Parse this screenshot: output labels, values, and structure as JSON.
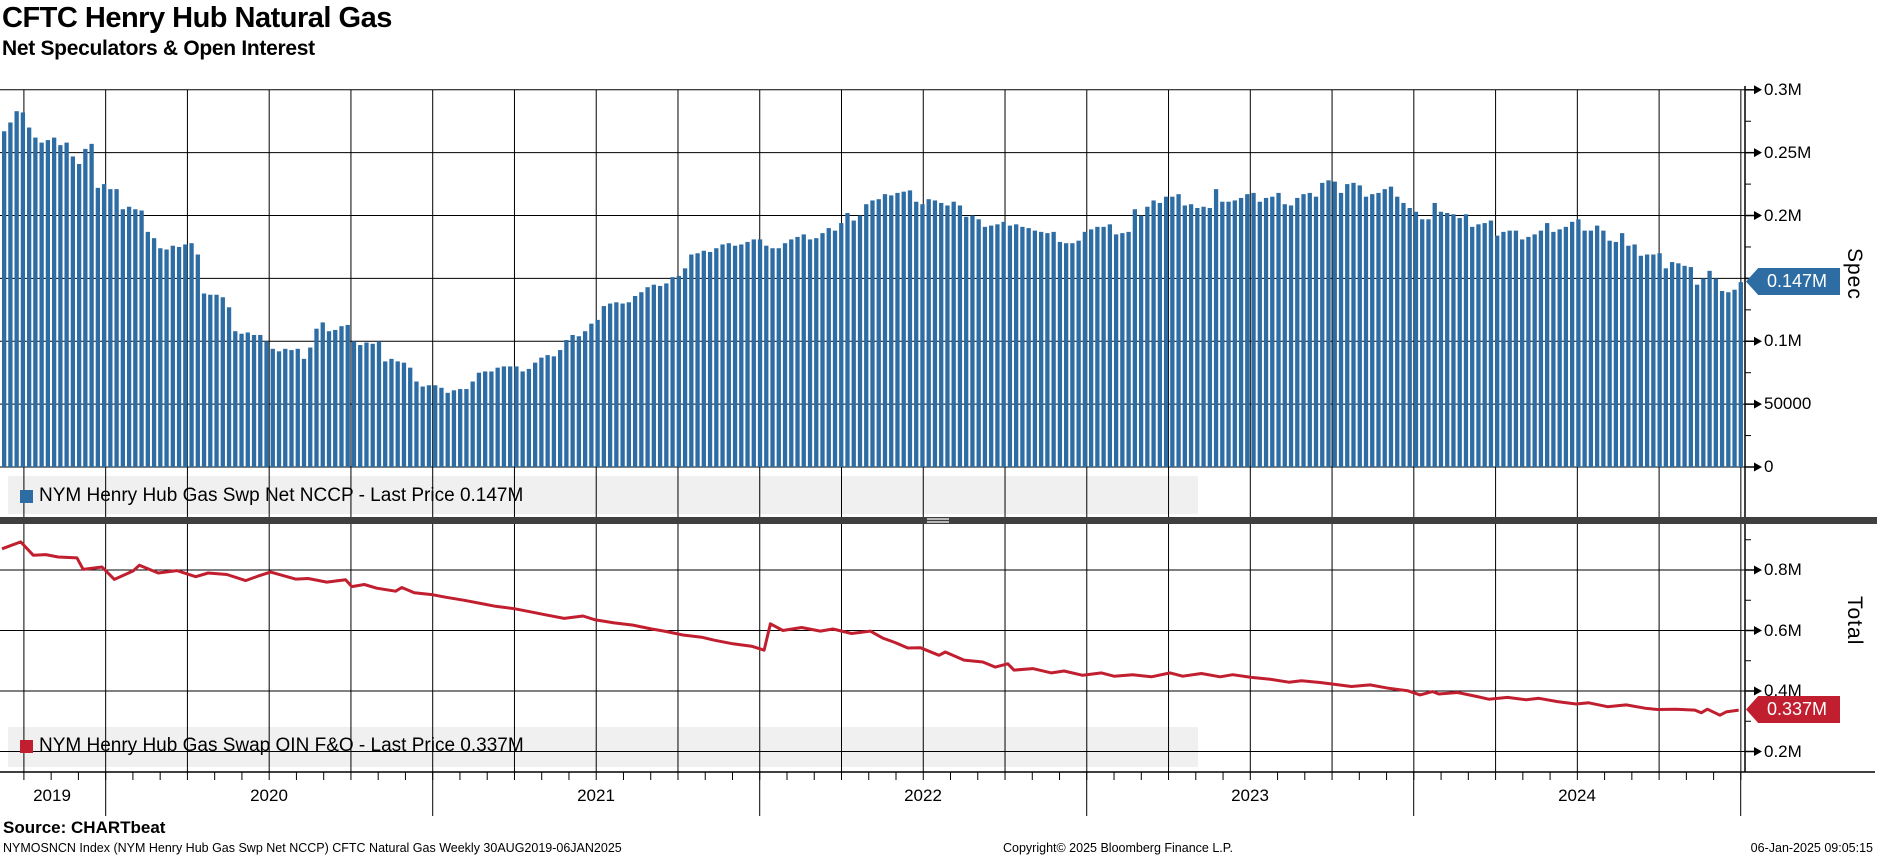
{
  "header": {
    "title": "CFTC Henry Hub Natural Gas",
    "subtitle": "Net Speculators & Open Interest"
  },
  "colors": {
    "bar": "#2d6da4",
    "line": "#c11f2f",
    "legend_bg": "#f0f0f0",
    "separator": "#3f3f3f",
    "grid": "#000000",
    "tag_blue": "#2d6da4",
    "tag_red": "#c11f2f"
  },
  "top_panel": {
    "legend": "NYM Henry Hub Gas Swp Net NCCP - Last Price 0.147M",
    "axis_label": "Spec",
    "tag": "0.147M",
    "yticks": [
      {
        "v": 0,
        "label": "0"
      },
      {
        "v": 50,
        "label": "50000"
      },
      {
        "v": 100,
        "label": "0.1M"
      },
      {
        "v": 150,
        "label": ""
      },
      {
        "v": 200,
        "label": "0.2M"
      },
      {
        "v": 250,
        "label": "0.25M"
      },
      {
        "v": 300,
        "label": "0.3M"
      }
    ]
  },
  "bottom_panel": {
    "legend": "NYM Henry Hub Gas Swap OIN F&O - Last Price 0.337M",
    "axis_label": "Total",
    "tag": "0.337M",
    "yticks": [
      {
        "v": 200,
        "label": "0.2M"
      },
      {
        "v": 400,
        "label": "0.4M"
      },
      {
        "v": 600,
        "label": "0.6M"
      },
      {
        "v": 800,
        "label": "0.8M"
      }
    ]
  },
  "x_axis": {
    "years": [
      "2019",
      "2020",
      "2021",
      "2022",
      "2023",
      "2024"
    ],
    "range": "30AUG2019-06JAN2025",
    "frequency": "Weekly"
  },
  "footer": {
    "source": "Source: CHARTbeat",
    "description": "NYMOSNCN Index (NYM Henry Hub Gas Swp Net NCCP) CFTC Natural Gas  Weekly 30AUG2019-06JAN2025",
    "copyright": "Copyright© 2025 Bloomberg Finance L.P.",
    "datetime": "06-Jan-2025 09:05:15"
  },
  "chart_data": [
    {
      "type": "bar",
      "name": "NYM Henry Hub Gas Swp Net NCCP",
      "title": "Net Speculators (Spec)",
      "frequency": "weekly",
      "x_start": "30AUG2019",
      "x_end": "06JAN2025",
      "ylim_thousands": [
        0,
        300
      ],
      "ytick_labels": [
        "0",
        "50000",
        "0.1M",
        "0.15M",
        "0.2M",
        "0.25M",
        "0.3M"
      ],
      "last_price": "0.147M",
      "legend_position": "bottom-left",
      "grid": true,
      "values_thousands": [
        267,
        274,
        283,
        282,
        270,
        262,
        258,
        260,
        262,
        256,
        258,
        247,
        241,
        253,
        257,
        222,
        225,
        221,
        221,
        205,
        207,
        205,
        204,
        187,
        182,
        174,
        173,
        176,
        175,
        177,
        178,
        169,
        138,
        137,
        137,
        135,
        127,
        108,
        106,
        107,
        105,
        105,
        100,
        94,
        92,
        94,
        93,
        94,
        86,
        95,
        110,
        115,
        108,
        109,
        112,
        113,
        100,
        97,
        99,
        98,
        100,
        84,
        86,
        84,
        83,
        79,
        68,
        64,
        65,
        65,
        63,
        59,
        61,
        62,
        62,
        68,
        75,
        76,
        76,
        79,
        80,
        80,
        80,
        76,
        78,
        83,
        87,
        89,
        88,
        93,
        101,
        105,
        104,
        108,
        114,
        117,
        128,
        130,
        131,
        130,
        131,
        136,
        139,
        143,
        145,
        144,
        146,
        151,
        152,
        158,
        169,
        170,
        172,
        171,
        174,
        177,
        178,
        176,
        177,
        179,
        181,
        181,
        176,
        174,
        174,
        178,
        181,
        183,
        185,
        181,
        182,
        186,
        190,
        188,
        194,
        202,
        196,
        200,
        209,
        212,
        213,
        217,
        216,
        218,
        219,
        220,
        211,
        209,
        213,
        212,
        210,
        208,
        211,
        208,
        199,
        200,
        197,
        191,
        192,
        193,
        195,
        192,
        193,
        191,
        190,
        188,
        187,
        186,
        187,
        179,
        178,
        178,
        180,
        187,
        189,
        191,
        191,
        193,
        185,
        186,
        187,
        205,
        200,
        207,
        212,
        210,
        215,
        215,
        217,
        208,
        209,
        206,
        207,
        206,
        221,
        211,
        211,
        212,
        214,
        217,
        218,
        211,
        214,
        215,
        218,
        209,
        208,
        214,
        217,
        218,
        215,
        226,
        228,
        227,
        218,
        225,
        226,
        224,
        215,
        217,
        218,
        221,
        223,
        215,
        210,
        206,
        203,
        197,
        197,
        210,
        203,
        202,
        201,
        198,
        201,
        191,
        193,
        194,
        196,
        184,
        187,
        188,
        188,
        181,
        183,
        185,
        188,
        194,
        187,
        189,
        191,
        195,
        197,
        188,
        188,
        192,
        188,
        180,
        179,
        186,
        176,
        177,
        168,
        169,
        169,
        170,
        158,
        163,
        162,
        160,
        159,
        145,
        150,
        156,
        150,
        140,
        139,
        141,
        147
      ]
    },
    {
      "type": "line",
      "name": "NYM Henry Hub Gas Swap OIN F&O",
      "title": "Open Interest (Total)",
      "frequency": "weekly",
      "x_start": "30AUG2019",
      "x_end": "06JAN2025",
      "ylim_thousands": [
        190,
        950
      ],
      "ytick_labels": [
        "0.2M",
        "0.4M",
        "0.6M",
        "0.8M"
      ],
      "last_price": "0.337M",
      "legend_position": "bottom-left",
      "grid": true,
      "points_week_value_thousands": [
        [
          0,
          870
        ],
        [
          3,
          893
        ],
        [
          5,
          849
        ],
        [
          7,
          851
        ],
        [
          9,
          843
        ],
        [
          12,
          840
        ],
        [
          13,
          802
        ],
        [
          16,
          810
        ],
        [
          18,
          769
        ],
        [
          21,
          797
        ],
        [
          22,
          816
        ],
        [
          25,
          790
        ],
        [
          28,
          798
        ],
        [
          31,
          778
        ],
        [
          33,
          790
        ],
        [
          36,
          785
        ],
        [
          39,
          765
        ],
        [
          41,
          780
        ],
        [
          43,
          793
        ],
        [
          47,
          770
        ],
        [
          49,
          772
        ],
        [
          52,
          760
        ],
        [
          55,
          768
        ],
        [
          56,
          745
        ],
        [
          58,
          752
        ],
        [
          60,
          740
        ],
        [
          63,
          730
        ],
        [
          64,
          742
        ],
        [
          66,
          725
        ],
        [
          69,
          718
        ],
        [
          71,
          710
        ],
        [
          74,
          700
        ],
        [
          77,
          688
        ],
        [
          79,
          680
        ],
        [
          82,
          672
        ],
        [
          85,
          660
        ],
        [
          87,
          652
        ],
        [
          90,
          640
        ],
        [
          93,
          648
        ],
        [
          95,
          635
        ],
        [
          98,
          625
        ],
        [
          101,
          618
        ],
        [
          104,
          605
        ],
        [
          106,
          598
        ],
        [
          109,
          585
        ],
        [
          112,
          578
        ],
        [
          114,
          568
        ],
        [
          117,
          556
        ],
        [
          120,
          548
        ],
        [
          122,
          535
        ],
        [
          123,
          622
        ],
        [
          125,
          600
        ],
        [
          128,
          610
        ],
        [
          131,
          598
        ],
        [
          133,
          605
        ],
        [
          136,
          590
        ],
        [
          139,
          598
        ],
        [
          141,
          575
        ],
        [
          143,
          560
        ],
        [
          145,
          542
        ],
        [
          147,
          543
        ],
        [
          150,
          518
        ],
        [
          151,
          529
        ],
        [
          154,
          502
        ],
        [
          157,
          496
        ],
        [
          159,
          479
        ],
        [
          161,
          490
        ],
        [
          162,
          469
        ],
        [
          165,
          474
        ],
        [
          168,
          460
        ],
        [
          170,
          466
        ],
        [
          173,
          452
        ],
        [
          176,
          460
        ],
        [
          178,
          449
        ],
        [
          181,
          454
        ],
        [
          184,
          447
        ],
        [
          187,
          460
        ],
        [
          189,
          449
        ],
        [
          192,
          458
        ],
        [
          195,
          447
        ],
        [
          197,
          454
        ],
        [
          200,
          445
        ],
        [
          203,
          439
        ],
        [
          206,
          429
        ],
        [
          208,
          434
        ],
        [
          211,
          428
        ],
        [
          214,
          420
        ],
        [
          216,
          415
        ],
        [
          219,
          420
        ],
        [
          222,
          409
        ],
        [
          225,
          401
        ],
        [
          227,
          387
        ],
        [
          229,
          398
        ],
        [
          230,
          390
        ],
        [
          233,
          395
        ],
        [
          236,
          382
        ],
        [
          238,
          373
        ],
        [
          241,
          379
        ],
        [
          244,
          371
        ],
        [
          246,
          376
        ],
        [
          249,
          365
        ],
        [
          252,
          357
        ],
        [
          254,
          361
        ],
        [
          257,
          348
        ],
        [
          260,
          354
        ],
        [
          263,
          343
        ],
        [
          265,
          339
        ],
        [
          268,
          340
        ],
        [
          271,
          337
        ],
        [
          272,
          328
        ],
        [
          273,
          340
        ],
        [
          275,
          320
        ],
        [
          276,
          331
        ],
        [
          278,
          337
        ]
      ]
    }
  ]
}
